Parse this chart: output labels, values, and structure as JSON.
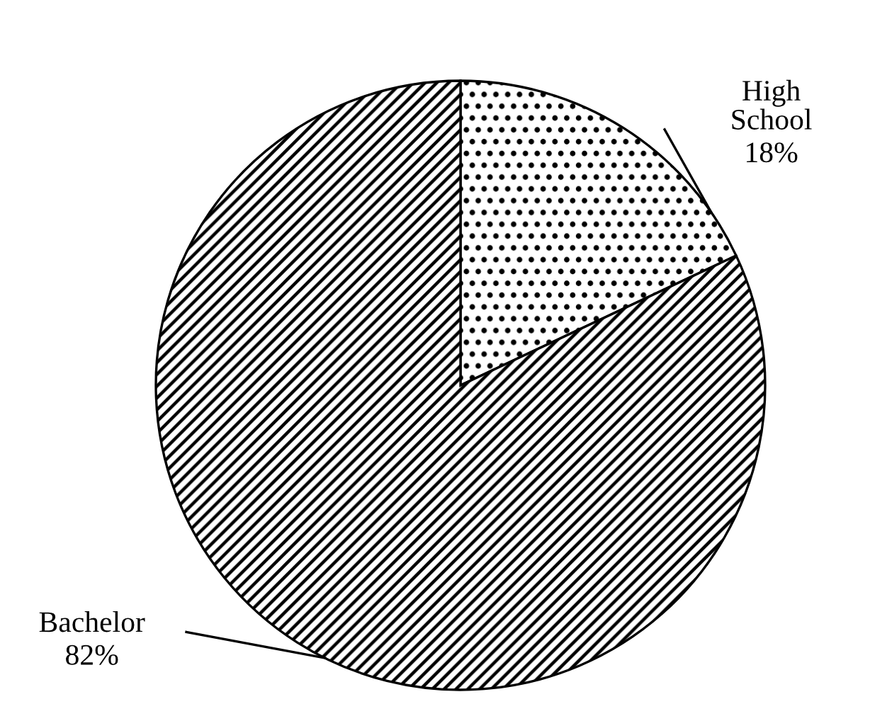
{
  "chart_data": {
    "type": "pie",
    "categories": [
      "High School",
      "Bachelor"
    ],
    "values": [
      18,
      82
    ],
    "colors": [
      "#ffffff",
      "#ffffff"
    ],
    "value_labels": [
      "18%",
      "82%"
    ]
  }
}
